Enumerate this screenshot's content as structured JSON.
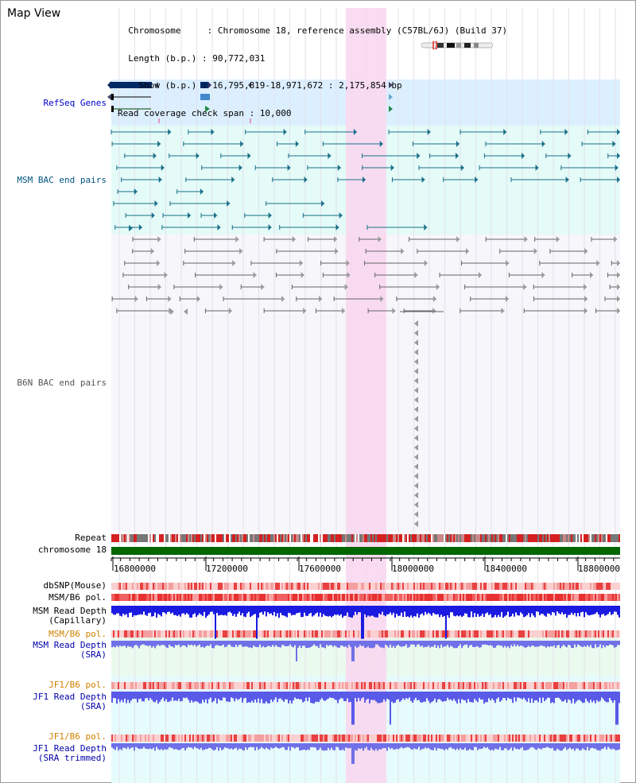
{
  "header": {
    "title": "Map View",
    "info_lines": [
      "  Chromosome     : Chromosome 18, reference assembly (C57BL/6J) (Build 37)",
      "  Length (b.p.) : 90,772,031",
      "    Show (b.p.) : 16,795,819-18,971,672 : 2,175,854 bp",
      "Read coverage check span : 10,000"
    ]
  },
  "tracks": {
    "refseq": "RefSeq Genes",
    "msm_bac": "MSM BAC end pairs",
    "b6n_bac": "B6N BAC end pairs",
    "repeat": "Repeat",
    "chromosome": "chromosome 18",
    "dbsnp": "dbSNP(Mouse)",
    "msm_b6_pol_1": "MSM/B6 pol.",
    "msm_read_depth_cap": "MSM Read Depth\n(Capillary)",
    "msm_b6_pol_2": "MSM/B6 pol.",
    "msm_read_depth_sra": "MSM Read Depth\n(SRA)",
    "jf1_b6_pol_1": "JF1/B6 pol.",
    "jf1_read_depth_sra": "JF1 Read Depth\n(SRA)",
    "jf1_b6_pol_2": "JF1/B6 pol.",
    "jf1_read_depth_trim": "JF1 Read Depth\n(SRA trimmed)"
  },
  "axis_ticks": [
    "16800000",
    "17200000",
    "17600000",
    "18000000",
    "18400000",
    "18800000"
  ],
  "colors": {
    "refseq_label": "#0000cc",
    "msm_label": "#005580",
    "b6n_label": "#555555",
    "pol_label_orange": "#d08000",
    "depth_label": "#0000aa",
    "highlight": "#f8d8f0",
    "chromosome_bar": "#006600"
  }
}
